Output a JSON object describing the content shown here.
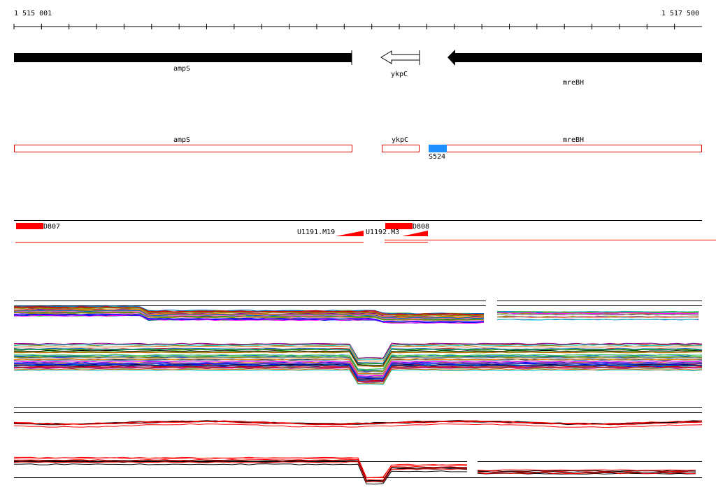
{
  "ruler": {
    "start": "1 515 001",
    "end": "1 517 500"
  },
  "genes": [
    {
      "label": "ampS"
    },
    {
      "label": "ykpC"
    },
    {
      "label": "mreBH"
    }
  ],
  "gene_boxes": [
    {
      "label": "ampS"
    },
    {
      "label": "ykpC"
    },
    {
      "label": "mreBH"
    }
  ],
  "site": {
    "label": "S524"
  },
  "features": [
    {
      "label": "D807"
    },
    {
      "label": "U1191.M19"
    },
    {
      "label": "U1192.M3"
    },
    {
      "label": "D808"
    }
  ]
}
